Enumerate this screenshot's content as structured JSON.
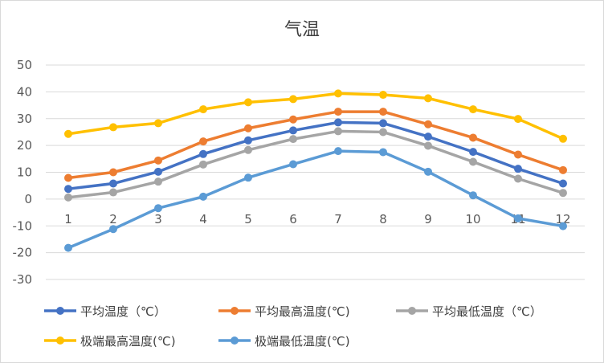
{
  "chart_data": {
    "type": "line",
    "title": "气温",
    "x": [
      "1",
      "2",
      "3",
      "4",
      "5",
      "6",
      "7",
      "8",
      "9",
      "10",
      "11",
      "12"
    ],
    "ylim": [
      -30,
      50
    ],
    "yticks": [
      "50",
      "40",
      "30",
      "20",
      "10",
      "0",
      "-10",
      "-20",
      "-30"
    ],
    "grid": true,
    "legend_position": "bottom",
    "series": [
      {
        "name": "平均温度（℃）",
        "color": "#4472C4",
        "values": [
          3.8,
          5.8,
          10.2,
          16.8,
          21.9,
          25.6,
          28.6,
          28.3,
          23.3,
          17.6,
          11.3,
          5.8
        ]
      },
      {
        "name": "平均最高温度(℃)",
        "color": "#ED7D31",
        "values": [
          7.9,
          10.0,
          14.4,
          21.5,
          26.4,
          29.7,
          32.6,
          32.6,
          27.9,
          22.9,
          16.6,
          10.8
        ]
      },
      {
        "name": "平均最低温度（℃）",
        "color": "#A5A5A5",
        "values": [
          0.6,
          2.5,
          6.5,
          12.9,
          18.3,
          22.4,
          25.3,
          25.0,
          19.9,
          13.9,
          7.6,
          2.3
        ]
      },
      {
        "name": "极端最高温度(℃)",
        "color": "#FFC000",
        "values": [
          24.3,
          26.8,
          28.3,
          33.5,
          36.1,
          37.3,
          39.4,
          38.9,
          37.6,
          33.5,
          29.9,
          22.5
        ]
      },
      {
        "name": "极端最低温度(℃)",
        "color": "#5B9BD5",
        "values": [
          -18.2,
          -11.2,
          -3.4,
          0.9,
          8.0,
          13.0,
          17.9,
          17.5,
          10.2,
          1.4,
          -7.2,
          -10.1
        ]
      }
    ]
  }
}
